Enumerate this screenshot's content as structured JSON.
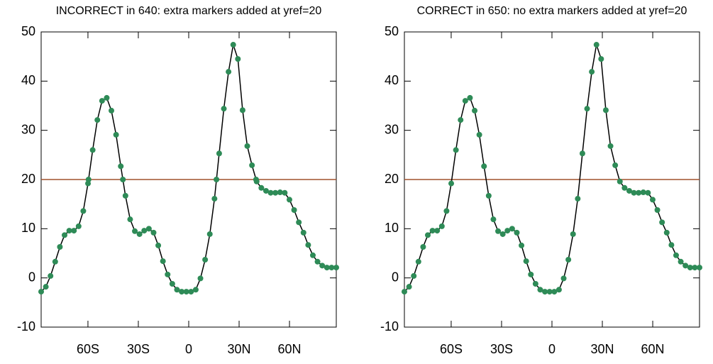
{
  "chart_data": [
    {
      "type": "line",
      "title": "INCORRECT in 640: extra markers added at yref=20",
      "x": [
        -87.86,
        -85.07,
        -82.28,
        -79.49,
        -76.7,
        -73.92,
        -71.13,
        -68.34,
        -65.55,
        -62.76,
        -59.97,
        -57.18,
        -54.39,
        -51.6,
        -48.81,
        -46.03,
        -43.24,
        -40.45,
        -37.66,
        -34.87,
        -32.08,
        -29.29,
        -26.5,
        -23.71,
        -20.92,
        -18.14,
        -15.35,
        -12.56,
        -9.77,
        -6.98,
        -4.19,
        -1.4,
        1.4,
        4.19,
        6.98,
        9.77,
        12.56,
        15.35,
        18.14,
        20.92,
        23.71,
        26.5,
        29.29,
        32.08,
        34.87,
        37.66,
        40.45,
        43.24,
        46.03,
        48.81,
        51.6,
        54.39,
        57.18,
        59.97,
        62.76,
        65.55,
        68.34,
        71.13,
        73.92,
        76.7,
        79.49,
        82.28,
        85.07,
        87.86
      ],
      "series": [
        {
          "color": "#2e8b57",
          "line_color": "#000000",
          "values": [
            -2.8,
            -1.8,
            0.4,
            3.3,
            6.3,
            8.7,
            9.6,
            9.6,
            10.5,
            13.6,
            19.2,
            26,
            32.1,
            36,
            36.6,
            34,
            29.1,
            22.7,
            16.7,
            11.9,
            9.5,
            8.9,
            9.6,
            10.0,
            9.2,
            6.6,
            3.4,
            0.7,
            -1.2,
            -2.4,
            -2.8,
            -2.8,
            -2.8,
            -2.4,
            -0.1,
            3.7,
            8.9,
            16.1,
            25.3,
            34.4,
            41.9,
            47.4,
            44.5,
            34.1,
            26.8,
            22.9,
            19.6,
            18.3,
            17.7,
            17.3,
            17.3,
            17.4,
            17.3,
            15.9,
            13.8,
            11.3,
            9.2,
            6.7,
            4.6,
            3.3,
            2.5,
            2.1,
            2.1,
            2.1
          ]
        }
      ],
      "extra_markers": {
        "color": "#2e8b57",
        "x": [
          -59.64,
          -39.19,
          16.51,
          40.1
        ],
        "values": [
          20,
          20,
          20,
          20
        ]
      },
      "yref": 20,
      "yref_color": "#a0522d",
      "xlim": [
        -87.86,
        87.86
      ],
      "xticks": [
        {
          "value": -60,
          "label": "60S"
        },
        {
          "value": -30,
          "label": "30S"
        },
        0,
        {
          "value": 30,
          "label": "30N"
        },
        {
          "value": 60,
          "label": "60N"
        }
      ],
      "ylim": [
        -10,
        50
      ],
      "yticks": [
        -10,
        0,
        10,
        20,
        30,
        40,
        50
      ]
    },
    {
      "type": "line",
      "title": "CORRECT in 650: no extra markers added at yref=20",
      "x": [
        -87.86,
        -85.07,
        -82.28,
        -79.49,
        -76.7,
        -73.92,
        -71.13,
        -68.34,
        -65.55,
        -62.76,
        -59.97,
        -57.18,
        -54.39,
        -51.6,
        -48.81,
        -46.03,
        -43.24,
        -40.45,
        -37.66,
        -34.87,
        -32.08,
        -29.29,
        -26.5,
        -23.71,
        -20.92,
        -18.14,
        -15.35,
        -12.56,
        -9.77,
        -6.98,
        -4.19,
        -1.4,
        1.4,
        4.19,
        6.98,
        9.77,
        12.56,
        15.35,
        18.14,
        20.92,
        23.71,
        26.5,
        29.29,
        32.08,
        34.87,
        37.66,
        40.45,
        43.24,
        46.03,
        48.81,
        51.6,
        54.39,
        57.18,
        59.97,
        62.76,
        65.55,
        68.34,
        71.13,
        73.92,
        76.7,
        79.49,
        82.28,
        85.07,
        87.86
      ],
      "series": [
        {
          "color": "#2e8b57",
          "line_color": "#000000",
          "values": [
            -2.8,
            -1.8,
            0.4,
            3.3,
            6.3,
            8.7,
            9.6,
            9.6,
            10.5,
            13.6,
            19.2,
            26,
            32.1,
            36,
            36.6,
            34,
            29.1,
            22.7,
            16.7,
            11.9,
            9.5,
            8.9,
            9.6,
            10.0,
            9.2,
            6.6,
            3.4,
            0.7,
            -1.2,
            -2.4,
            -2.8,
            -2.8,
            -2.8,
            -2.4,
            -0.1,
            3.7,
            8.9,
            16.1,
            25.3,
            34.4,
            41.9,
            47.4,
            44.5,
            34.1,
            26.8,
            22.9,
            19.6,
            18.3,
            17.7,
            17.3,
            17.3,
            17.4,
            17.3,
            15.9,
            13.8,
            11.3,
            9.2,
            6.7,
            4.6,
            3.3,
            2.5,
            2.1,
            2.1,
            2.1
          ]
        }
      ],
      "yref": 20,
      "yref_color": "#a0522d",
      "xlim": [
        -87.86,
        87.86
      ],
      "xticks": [
        {
          "value": -60,
          "label": "60S"
        },
        {
          "value": -30,
          "label": "30S"
        },
        0,
        {
          "value": 30,
          "label": "30N"
        },
        {
          "value": 60,
          "label": "60N"
        }
      ],
      "ylim": [
        -10,
        50
      ],
      "yticks": [
        -10,
        0,
        10,
        20,
        30,
        40,
        50
      ]
    }
  ]
}
